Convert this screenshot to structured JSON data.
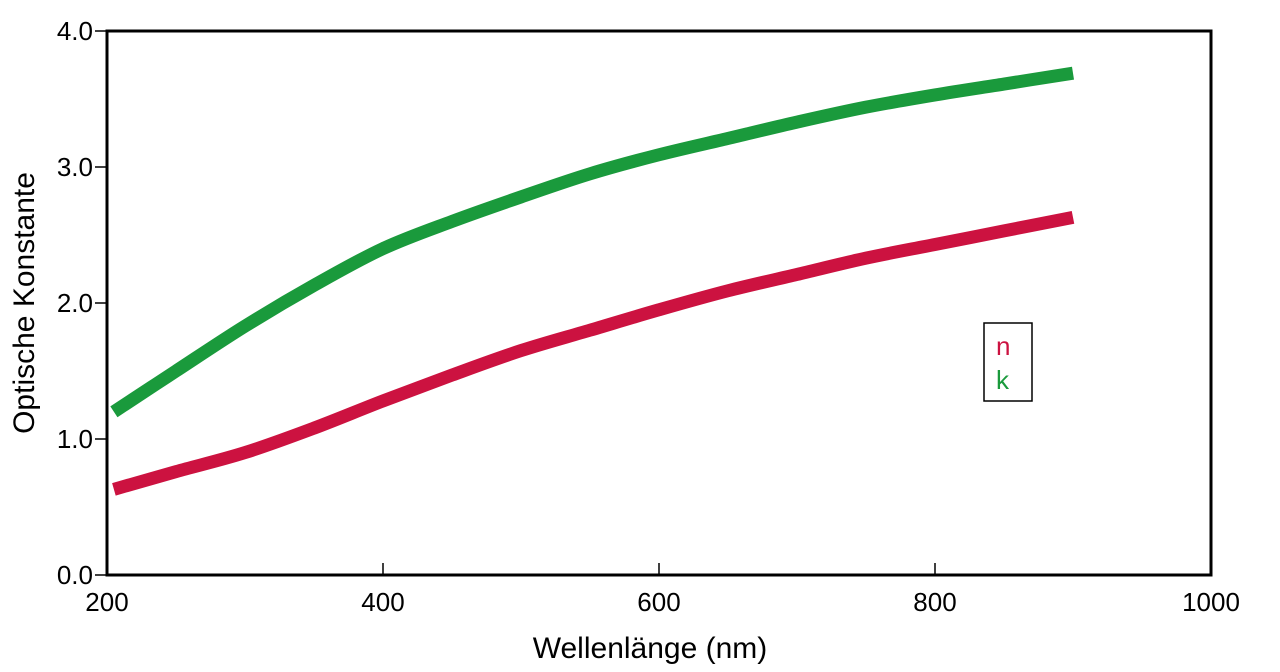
{
  "chart_data": {
    "type": "line",
    "xlabel": "Wellenlänge (nm)",
    "ylabel": "Optische Konstante",
    "xlim": [
      200,
      1000
    ],
    "ylim": [
      0.0,
      4.0
    ],
    "x_ticks": [
      200,
      400,
      600,
      800,
      1000
    ],
    "y_ticks": [
      0.0,
      1.0,
      2.0,
      3.0,
      4.0
    ],
    "x_tick_labels": [
      "200",
      "400",
      "600",
      "800",
      "1000"
    ],
    "y_tick_labels": [
      "0.0",
      "1.0",
      "2.0",
      "3.0",
      "4.0"
    ],
    "grid": false,
    "legend_position": "right",
    "series": [
      {
        "name": "n",
        "color": "#cc1240",
        "x": [
          205,
          250,
          300,
          350,
          400,
          450,
          500,
          550,
          600,
          650,
          700,
          750,
          800,
          850,
          900
        ],
        "y": [
          0.63,
          0.76,
          0.9,
          1.08,
          1.28,
          1.47,
          1.65,
          1.8,
          1.95,
          2.09,
          2.21,
          2.33,
          2.43,
          2.53,
          2.63
        ]
      },
      {
        "name": "k",
        "color": "#1a9a3c",
        "x": [
          205,
          250,
          300,
          350,
          400,
          450,
          500,
          550,
          600,
          650,
          700,
          750,
          800,
          850,
          900
        ],
        "y": [
          1.2,
          1.5,
          1.83,
          2.13,
          2.4,
          2.6,
          2.78,
          2.95,
          3.09,
          3.21,
          3.33,
          3.44,
          3.53,
          3.61,
          3.69
        ]
      }
    ]
  }
}
